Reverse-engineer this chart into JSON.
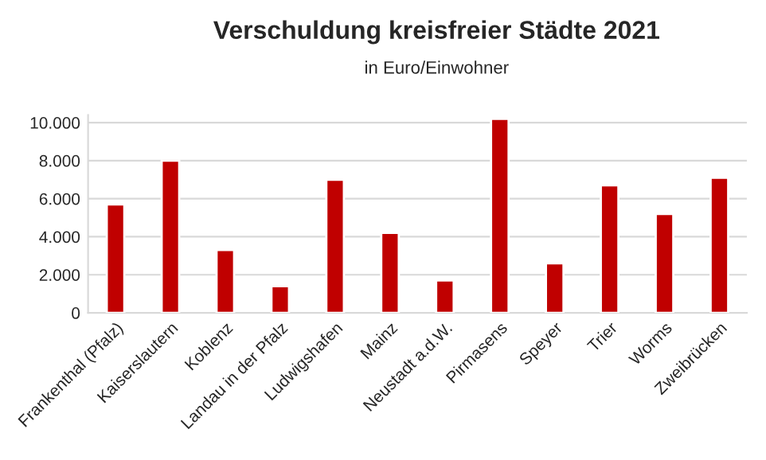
{
  "chart_data": {
    "type": "bar",
    "title": "Verschuldung kreisfreier Städte 2021",
    "subtitle": "in Euro/Einwohner",
    "categories": [
      "Frankenthal (Pfalz)",
      "Kaiserslautern",
      "Koblenz",
      "Landau in der Pfalz",
      "Ludwigshafen",
      "Mainz",
      "Neustadt a.d.W.",
      "Pirmasens",
      "Speyer",
      "Trier",
      "Worms",
      "Zweibrücken"
    ],
    "values": [
      5700,
      8000,
      3300,
      1400,
      7000,
      4200,
      1700,
      10200,
      2600,
      6700,
      5200,
      7100
    ],
    "color": "#c00000",
    "ylim": [
      0,
      10400
    ],
    "yticks": [
      0,
      {
        "value": 2000,
        "label": "2.000"
      },
      {
        "value": 4000,
        "label": "4.000"
      },
      {
        "value": 6000,
        "label": "6.000"
      },
      {
        "value": 8000,
        "label": "8.000"
      },
      {
        "value": 10000,
        "label": "10.000"
      }
    ],
    "grid": "y"
  }
}
